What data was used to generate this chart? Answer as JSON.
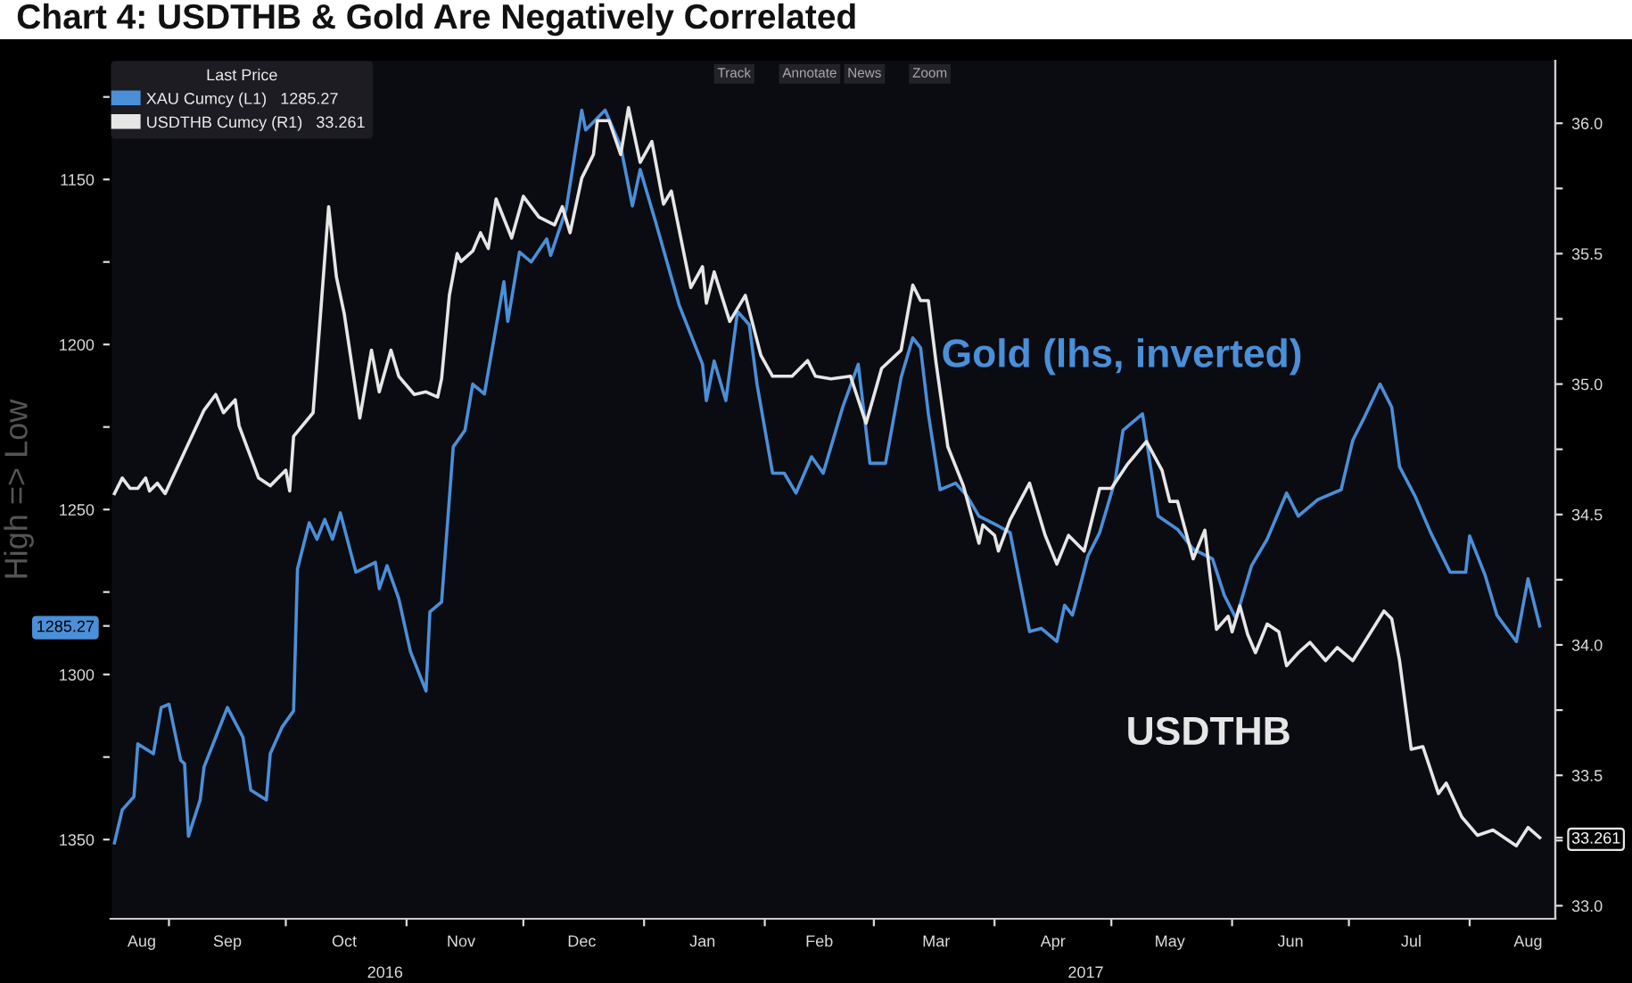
{
  "chart_data": {
    "type": "line",
    "title": "Chart 4: USDTHB & Gold Are Negatively Correlated",
    "ylabel": "High => Low",
    "legend_title": "Last Price",
    "legend": "top left",
    "line_style": "solid",
    "grid": false,
    "annotations": [
      "Gold (lhs, inverted)",
      "USDTHB",
      "Track",
      "Annotate",
      "News",
      "Zoom",
      "2016",
      "2017"
    ],
    "xlim": [
      "2016-08-17",
      "2017-08-23"
    ],
    "xticks": [
      {
        "value": "2016-08-25",
        "label": "Aug"
      },
      {
        "value": "2016-09-01",
        "label": null
      },
      {
        "value": "2016-09-16",
        "label": "Sep"
      },
      {
        "value": "2016-10-01",
        "label": null
      },
      {
        "value": "2016-10-16",
        "label": "Oct"
      },
      {
        "value": "2016-11-01",
        "label": null
      },
      {
        "value": "2016-11-15",
        "label": "Nov"
      },
      {
        "value": "2016-12-01",
        "label": null
      },
      {
        "value": "2016-12-16",
        "label": "Dec"
      },
      {
        "value": "2017-01-01",
        "label": null
      },
      {
        "value": "2017-01-16",
        "label": "Jan"
      },
      {
        "value": "2017-02-01",
        "label": null
      },
      {
        "value": "2017-02-15",
        "label": "Feb"
      },
      {
        "value": "2017-03-01",
        "label": null
      },
      {
        "value": "2017-03-17",
        "label": "Mar"
      },
      {
        "value": "2017-04-01",
        "label": null
      },
      {
        "value": "2017-04-16",
        "label": "Apr"
      },
      {
        "value": "2017-05-01",
        "label": null
      },
      {
        "value": "2017-05-16",
        "label": "May"
      },
      {
        "value": "2017-06-01",
        "label": null
      },
      {
        "value": "2017-06-16",
        "label": "Jun"
      },
      {
        "value": "2017-07-01",
        "label": null
      },
      {
        "value": "2017-07-17",
        "label": "Jul"
      },
      {
        "value": "2017-08-01",
        "label": null
      },
      {
        "value": "2017-08-16",
        "label": "Aug"
      }
    ],
    "ylim": [
      1374,
      1114
    ],
    "yticks": [
      {
        "value": 1125,
        "label": null
      },
      1150,
      {
        "value": 1175,
        "label": null
      },
      1200,
      {
        "value": 1225,
        "label": null
      },
      1250,
      {
        "value": 1275,
        "label": null
      },
      {
        "value": 1285.27,
        "label": "1285.27"
      },
      1300,
      {
        "value": 1325,
        "label": null
      },
      1350
    ],
    "y2lim": [
      32.95,
      36.24
    ],
    "y2ticks": [
      {
        "value": 33.0,
        "label": "33.0"
      },
      {
        "value": 33.25,
        "label": null
      },
      {
        "value": 33.261,
        "label": "33.261"
      },
      {
        "value": 33.5,
        "label": "33.5"
      },
      {
        "value": 33.75,
        "label": null
      },
      {
        "value": 34.0,
        "label": "34.0"
      },
      {
        "value": 34.25,
        "label": null
      },
      {
        "value": 34.5,
        "label": "34.5"
      },
      {
        "value": 34.75,
        "label": null
      },
      {
        "value": 35.0,
        "label": "35.0"
      },
      {
        "value": 35.25,
        "label": null
      },
      {
        "value": 35.5,
        "label": "35.5"
      },
      {
        "value": 35.75,
        "label": null
      },
      {
        "value": 36.0,
        "label": "36.0"
      }
    ],
    "series": [
      {
        "name": "XAU Cumcy (L1)   1285.27",
        "color": "#4a8fd8",
        "x": [
          "2016-08-18",
          "2016-08-20",
          "2016-08-23",
          "2016-08-24",
          "2016-08-28",
          "2016-08-30",
          "2016-09-01",
          "2016-09-04",
          "2016-09-05",
          "2016-09-06",
          "2016-09-09",
          "2016-09-10",
          "2016-09-13",
          "2016-09-16",
          "2016-09-20",
          "2016-09-22",
          "2016-09-26",
          "2016-09-27",
          "2016-09-30",
          "2016-10-03",
          "2016-10-04",
          "2016-10-07",
          "2016-10-09",
          "2016-10-11",
          "2016-10-13",
          "2016-10-15",
          "2016-10-19",
          "2016-10-24",
          "2016-10-25",
          "2016-10-27",
          "2016-10-30",
          "2016-11-02",
          "2016-11-06",
          "2016-11-07",
          "2016-11-10",
          "2016-11-13",
          "2016-11-16",
          "2016-11-18",
          "2016-11-21",
          "2016-11-26",
          "2016-11-27",
          "2016-11-30",
          "2016-12-03",
          "2016-12-07",
          "2016-12-08",
          "2016-12-12",
          "2016-12-16",
          "2016-12-17",
          "2016-12-22",
          "2016-12-26",
          "2016-12-29",
          "2016-12-31",
          "2017-01-04",
          "2017-01-10",
          "2017-01-16",
          "2017-01-17",
          "2017-01-19",
          "2017-01-22",
          "2017-01-25",
          "2017-01-28",
          "2017-01-30",
          "2017-02-03",
          "2017-02-06",
          "2017-02-09",
          "2017-02-13",
          "2017-02-16",
          "2017-02-21",
          "2017-02-25",
          "2017-02-28",
          "2017-03-04",
          "2017-03-08",
          "2017-03-11",
          "2017-03-13",
          "2017-03-15",
          "2017-03-18",
          "2017-03-22",
          "2017-03-25",
          "2017-03-28",
          "2017-04-02",
          "2017-04-05",
          "2017-04-10",
          "2017-04-13",
          "2017-04-17",
          "2017-04-19",
          "2017-04-21",
          "2017-04-25",
          "2017-04-28",
          "2017-05-02",
          "2017-05-04",
          "2017-05-09",
          "2017-05-13",
          "2017-05-18",
          "2017-05-22",
          "2017-05-27",
          "2017-05-30",
          "2017-06-02",
          "2017-06-06",
          "2017-06-10",
          "2017-06-15",
          "2017-06-18",
          "2017-06-23",
          "2017-06-29",
          "2017-07-02",
          "2017-07-05",
          "2017-07-09",
          "2017-07-12",
          "2017-07-14",
          "2017-07-18",
          "2017-07-22",
          "2017-07-27",
          "2017-07-31",
          "2017-08-01",
          "2017-08-05",
          "2017-08-08",
          "2017-08-13",
          "2017-08-16",
          "2017-08-19"
        ],
        "values": [
          1351,
          1341,
          1337,
          1321,
          1324,
          1310,
          1309,
          1326,
          1327,
          1349,
          1338,
          1328,
          1319,
          1310,
          1319,
          1335,
          1338,
          1324,
          1316,
          1311,
          1268,
          1254,
          1259,
          1253,
          1259,
          1251,
          1269,
          1266,
          1274,
          1267,
          1277,
          1293,
          1305,
          1281,
          1278,
          1231,
          1226,
          1212,
          1215,
          1181,
          1193,
          1172,
          1175,
          1168,
          1173,
          1159,
          1129,
          1135,
          1129,
          1140,
          1158,
          1147,
          1163,
          1188,
          1206,
          1217,
          1205,
          1217,
          1190,
          1194,
          1212,
          1239,
          1239,
          1245,
          1234,
          1239,
          1219,
          1206,
          1236,
          1236,
          1210,
          1198,
          1201,
          1221,
          1244,
          1242,
          1246,
          1252,
          1255,
          1257,
          1287,
          1286,
          1290,
          1279,
          1282,
          1264,
          1257,
          1241,
          1226,
          1221,
          1252,
          1256,
          1262,
          1265,
          1276,
          1283,
          1267,
          1259,
          1245,
          1252,
          1247,
          1244,
          1229,
          1222,
          1212,
          1219,
          1237,
          1246,
          1257,
          1269,
          1269,
          1258,
          1270,
          1282,
          1290,
          1271,
          1285.27
        ]
      },
      {
        "name": "USDTHB Cumcy (R1)   33.261",
        "color": "#e6e6e6",
        "axis": "y2",
        "x": [
          "2016-08-18",
          "2016-08-20",
          "2016-08-22",
          "2016-08-24",
          "2016-08-26",
          "2016-08-27",
          "2016-08-29",
          "2016-08-31",
          "2016-09-05",
          "2016-09-10",
          "2016-09-13",
          "2016-09-15",
          "2016-09-18",
          "2016-09-19",
          "2016-09-24",
          "2016-09-27",
          "2016-10-01",
          "2016-10-02",
          "2016-10-03",
          "2016-10-08",
          "2016-10-12",
          "2016-10-14",
          "2016-10-16",
          "2016-10-20",
          "2016-10-23",
          "2016-10-25",
          "2016-10-28",
          "2016-10-30",
          "2016-11-03",
          "2016-11-06",
          "2016-11-09",
          "2016-11-10",
          "2016-11-12",
          "2016-11-14",
          "2016-11-15",
          "2016-11-18",
          "2016-11-20",
          "2016-11-22",
          "2016-11-24",
          "2016-11-28",
          "2016-12-01",
          "2016-12-05",
          "2016-12-09",
          "2016-12-11",
          "2016-12-13",
          "2016-12-16",
          "2016-12-19",
          "2016-12-20",
          "2016-12-23",
          "2016-12-26",
          "2016-12-28",
          "2016-12-31",
          "2017-01-03",
          "2017-01-06",
          "2017-01-08",
          "2017-01-13",
          "2017-01-16",
          "2017-01-17",
          "2017-01-19",
          "2017-01-23",
          "2017-01-27",
          "2017-01-31",
          "2017-02-03",
          "2017-02-08",
          "2017-02-12",
          "2017-02-14",
          "2017-02-18",
          "2017-02-23",
          "2017-02-27",
          "2017-03-03",
          "2017-03-08",
          "2017-03-11",
          "2017-03-13",
          "2017-03-15",
          "2017-03-17",
          "2017-03-20",
          "2017-03-24",
          "2017-03-28",
          "2017-03-29",
          "2017-04-01",
          "2017-04-02",
          "2017-04-05",
          "2017-04-10",
          "2017-04-14",
          "2017-04-17",
          "2017-04-20",
          "2017-04-24",
          "2017-04-28",
          "2017-05-01",
          "2017-05-05",
          "2017-05-10",
          "2017-05-14",
          "2017-05-16",
          "2017-05-18",
          "2017-05-22",
          "2017-05-25",
          "2017-05-26",
          "2017-05-28",
          "2017-05-31",
          "2017-06-01",
          "2017-06-03",
          "2017-06-05",
          "2017-06-07",
          "2017-06-10",
          "2017-06-13",
          "2017-06-15",
          "2017-06-18",
          "2017-06-21",
          "2017-06-25",
          "2017-06-28",
          "2017-07-02",
          "2017-07-05",
          "2017-07-10",
          "2017-07-12",
          "2017-07-14",
          "2017-07-17",
          "2017-07-20",
          "2017-07-24",
          "2017-07-26",
          "2017-07-30",
          "2017-08-03",
          "2017-08-07",
          "2017-08-13",
          "2017-08-16",
          "2017-08-19"
        ],
        "values": [
          34.58,
          34.64,
          34.6,
          34.6,
          34.64,
          34.59,
          34.62,
          34.58,
          34.74,
          34.9,
          34.96,
          34.89,
          34.94,
          34.84,
          34.64,
          34.61,
          34.67,
          34.59,
          34.8,
          34.89,
          35.68,
          35.41,
          35.27,
          34.87,
          35.13,
          34.97,
          35.13,
          35.03,
          34.96,
          34.97,
          34.95,
          35.02,
          35.34,
          35.5,
          35.47,
          35.51,
          35.58,
          35.52,
          35.71,
          35.56,
          35.72,
          35.64,
          35.61,
          35.68,
          35.58,
          35.79,
          35.88,
          36.01,
          36.01,
          35.88,
          36.06,
          35.85,
          35.93,
          35.69,
          35.74,
          35.37,
          35.45,
          35.31,
          35.43,
          35.24,
          35.34,
          35.11,
          35.03,
          35.03,
          35.09,
          35.03,
          35.02,
          35.03,
          34.85,
          35.06,
          35.13,
          35.38,
          35.32,
          35.32,
          35.08,
          34.76,
          34.61,
          34.39,
          34.46,
          34.42,
          34.36,
          34.48,
          34.62,
          34.42,
          34.31,
          34.42,
          34.36,
          34.6,
          34.6,
          34.69,
          34.78,
          34.67,
          34.55,
          34.55,
          34.33,
          34.44,
          34.31,
          34.06,
          34.11,
          34.05,
          34.15,
          34.04,
          33.97,
          34.08,
          34.05,
          33.92,
          33.97,
          34.01,
          33.94,
          33.99,
          33.94,
          34.01,
          34.13,
          34.1,
          33.94,
          33.6,
          33.61,
          33.43,
          33.47,
          33.34,
          33.27,
          33.29,
          33.23,
          33.3,
          33.261
        ]
      }
    ]
  }
}
